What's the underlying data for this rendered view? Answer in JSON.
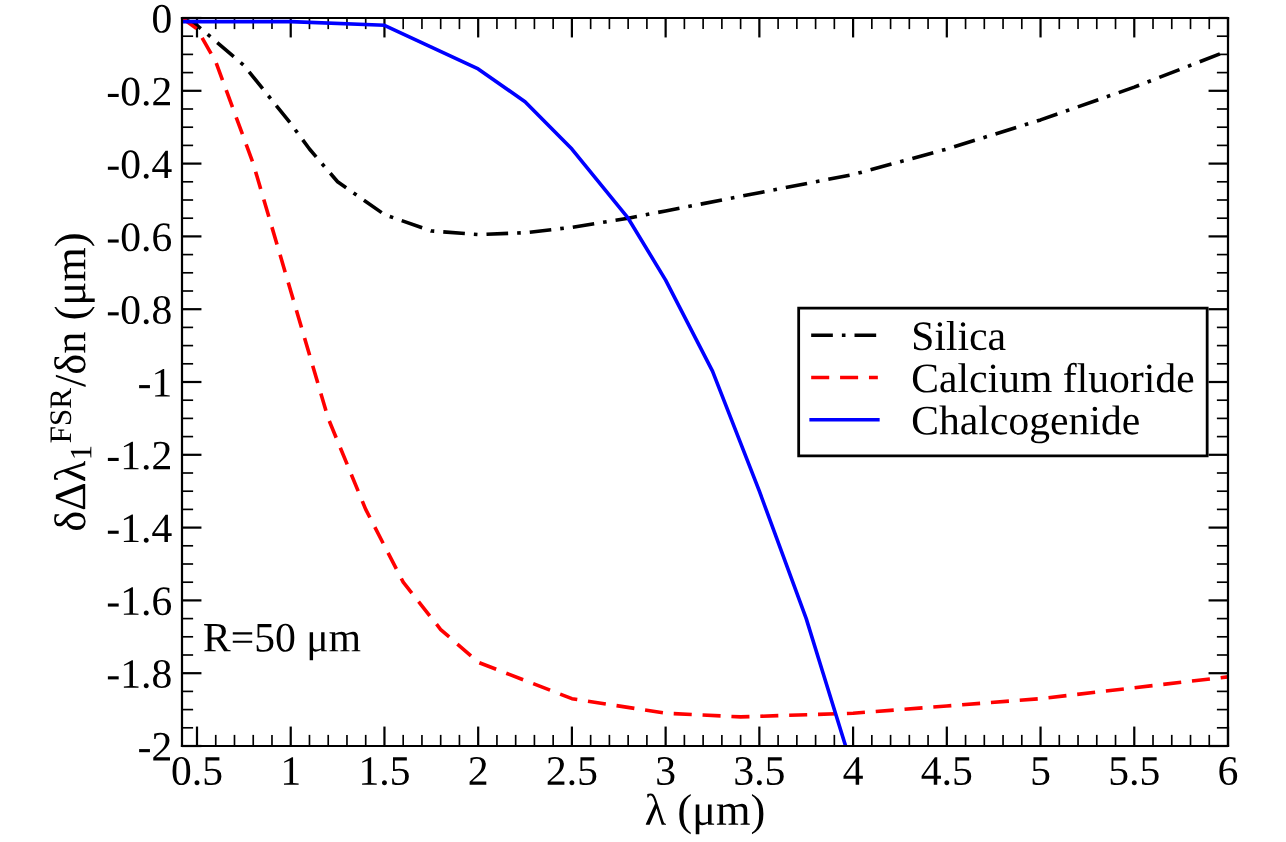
{
  "chart_data": {
    "type": "line",
    "xlabel": "λ (μm)",
    "ylabel": "δΔλ$_{1}$$^{FSR}$/δn (μm)",
    "annotations": [
      "R=50 μm"
    ],
    "xlim": [
      0.42,
      6
    ],
    "ylim": [
      -2,
      0
    ],
    "xticks": [
      0.5,
      1,
      1.5,
      2,
      2.5,
      3,
      3.5,
      4,
      4.5,
      5,
      5.5,
      6
    ],
    "yticks": [
      {
        "value": 0,
        "label": "0"
      },
      -0.2,
      -0.4,
      -0.6,
      -0.8,
      {
        "value": -1,
        "label": "-1"
      },
      -1.2,
      -1.4,
      -1.6,
      -1.8,
      {
        "value": -2,
        "label": "-2"
      }
    ],
    "grid": false,
    "legend": "center right",
    "series": [
      {
        "name": "Silica",
        "color": "#000000",
        "line_style": "dashdot",
        "x": [
          0.42,
          0.5,
          0.75,
          1.0,
          1.1,
          1.25,
          1.5,
          1.75,
          2.0,
          2.25,
          2.5,
          2.8,
          3.0,
          3.5,
          4.0,
          4.5,
          5.0,
          5.5,
          6.0
        ],
        "values": [
          0,
          -0.02,
          -0.13,
          -0.29,
          -0.36,
          -0.45,
          -0.54,
          -0.585,
          -0.595,
          -0.59,
          -0.575,
          -0.55,
          -0.53,
          -0.48,
          -0.43,
          -0.36,
          -0.28,
          -0.19,
          -0.09
        ]
      },
      {
        "name": "Calcium fluoride",
        "color": "#ff0000",
        "line_style": "dashed",
        "x": [
          0.42,
          0.5,
          0.6,
          0.8,
          1.0,
          1.2,
          1.4,
          1.6,
          1.8,
          2.0,
          2.5,
          3.0,
          3.4,
          4.0,
          4.5,
          5.0,
          5.5,
          6.0
        ],
        "values": [
          0,
          -0.03,
          -0.12,
          -0.4,
          -0.75,
          -1.1,
          -1.35,
          -1.55,
          -1.68,
          -1.77,
          -1.87,
          -1.91,
          -1.92,
          -1.91,
          -1.89,
          -1.87,
          -1.84,
          -1.81
        ]
      },
      {
        "name": "Chalcogenide",
        "color": "#0000ff",
        "line_style": "solid",
        "x": [
          0.42,
          1.0,
          1.5,
          1.75,
          2.0,
          2.25,
          2.5,
          2.8,
          3.0,
          3.25,
          3.5,
          3.75,
          3.84,
          3.96
        ],
        "values": [
          -0.01,
          -0.01,
          -0.02,
          -0.08,
          -0.14,
          -0.23,
          -0.36,
          -0.55,
          -0.72,
          -0.97,
          -1.3,
          -1.65,
          -1.8,
          -2.0
        ]
      }
    ]
  }
}
